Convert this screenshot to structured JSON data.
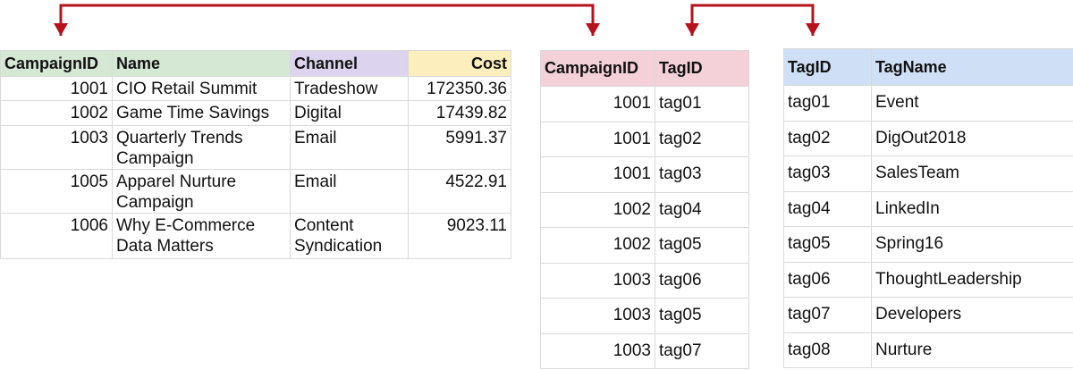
{
  "colors": {
    "arrow": "#b5121b",
    "header_id": "#d5e8d4",
    "header_name": "#d5e8d4",
    "header_channel": "#dcd3ee",
    "header_cost": "#fdefbd",
    "header_ctag": "#f4d0d9",
    "header_tag": "#cfe0f6",
    "grid": "#d9d9d9"
  },
  "campaign_table": {
    "headers": [
      "CampaignID",
      "Name",
      "Channel",
      "Cost"
    ],
    "rows": [
      {
        "id": "1001",
        "name": "CIO Retail Summit",
        "channel": "Tradeshow",
        "cost": "172350.36"
      },
      {
        "id": "1002",
        "name": "Game Time Savings",
        "channel": "Digital",
        "cost": "17439.82"
      },
      {
        "id": "1003",
        "name": "Quarterly Trends Campaign",
        "channel": "Email",
        "cost": "5991.37"
      },
      {
        "id": "1005",
        "name": "Apparel Nurture Campaign",
        "channel": "Email",
        "cost": "4522.91"
      },
      {
        "id": "1006",
        "name": "Why E-Commerce Data Matters",
        "channel": "Content Syndication",
        "cost": "9023.11"
      }
    ]
  },
  "campaign_tag_table": {
    "headers": [
      "CampaignID",
      "TagID"
    ],
    "rows": [
      {
        "campaign_id": "1001",
        "tag_id": "tag01"
      },
      {
        "campaign_id": "1001",
        "tag_id": "tag02"
      },
      {
        "campaign_id": "1001",
        "tag_id": "tag03"
      },
      {
        "campaign_id": "1002",
        "tag_id": "tag04"
      },
      {
        "campaign_id": "1002",
        "tag_id": "tag05"
      },
      {
        "campaign_id": "1003",
        "tag_id": "tag06"
      },
      {
        "campaign_id": "1003",
        "tag_id": "tag05"
      },
      {
        "campaign_id": "1003",
        "tag_id": "tag07"
      }
    ]
  },
  "tag_table": {
    "headers": [
      "TagID",
      "TagName"
    ],
    "rows": [
      {
        "tag_id": "tag01",
        "tag_name": "Event"
      },
      {
        "tag_id": "tag02",
        "tag_name": "DigOut2018"
      },
      {
        "tag_id": "tag03",
        "tag_name": "SalesTeam"
      },
      {
        "tag_id": "tag04",
        "tag_name": "LinkedIn"
      },
      {
        "tag_id": "tag05",
        "tag_name": "Spring16"
      },
      {
        "tag_id": "tag06",
        "tag_name": "ThoughtLeadership"
      },
      {
        "tag_id": "tag07",
        "tag_name": "Developers"
      },
      {
        "tag_id": "tag08",
        "tag_name": "Nurture"
      }
    ]
  }
}
